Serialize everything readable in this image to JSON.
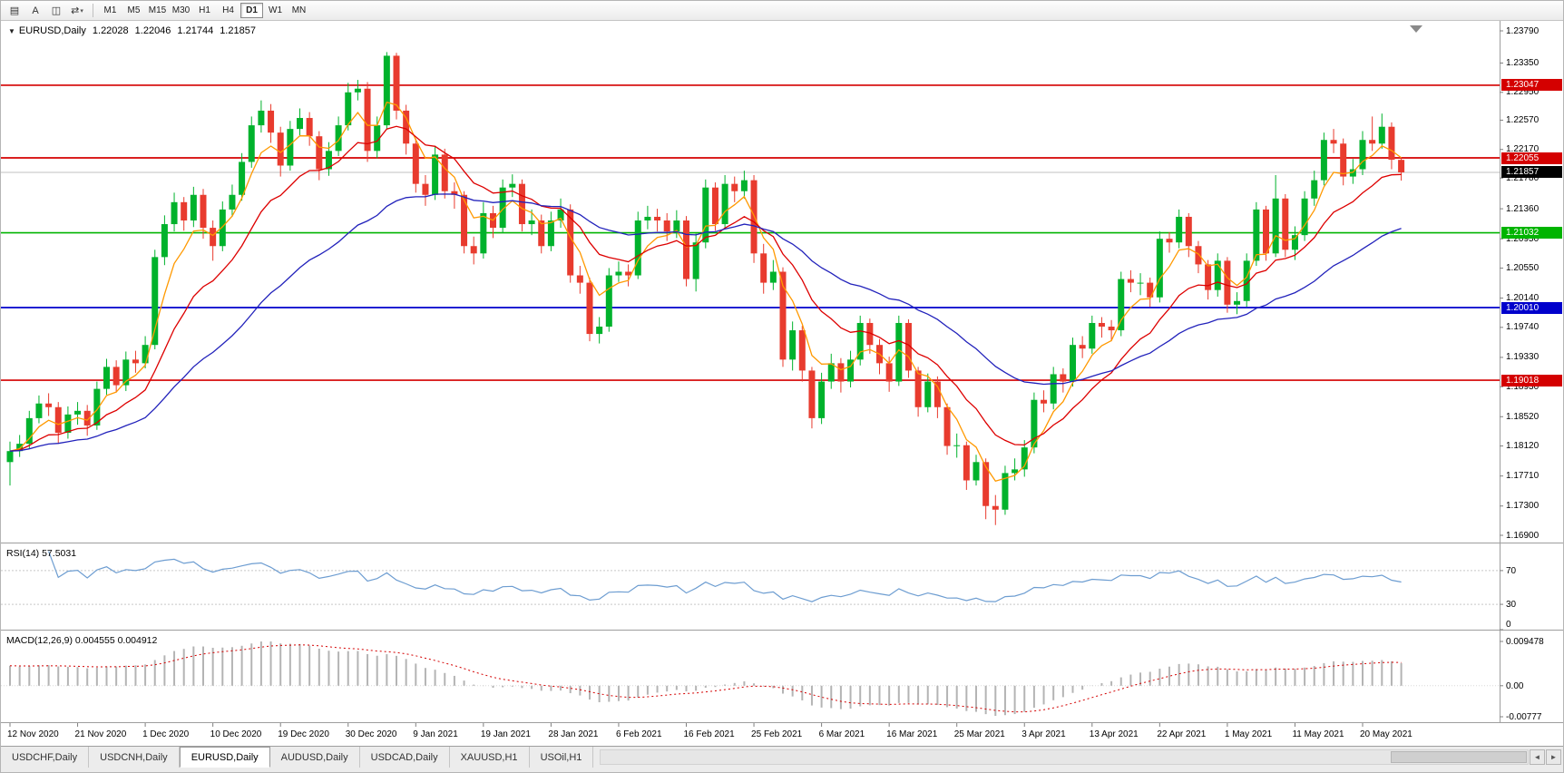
{
  "toolbar": {
    "icons": [
      {
        "name": "chart-list-icon",
        "glyph": "▤"
      },
      {
        "name": "cursor-a-tool",
        "glyph": "A"
      },
      {
        "name": "chart-frame-icon",
        "glyph": "◫"
      },
      {
        "name": "shift-scale-tool",
        "glyph": "⇄"
      }
    ],
    "dropdown_glyph": "▾",
    "timeframes": [
      "M1",
      "M5",
      "M15",
      "M30",
      "H1",
      "H4",
      "D1",
      "W1",
      "MN"
    ],
    "active_timeframe": "D1"
  },
  "chart": {
    "collapse_glyph": "▼",
    "symbol": "EURUSD,Daily",
    "open": "1.22028",
    "high": "1.22046",
    "low": "1.21744",
    "close": "1.21857",
    "hlines": [
      {
        "label": "1.23047",
        "value": 1.23047,
        "color": "#d40000"
      },
      {
        "label": "1.22055",
        "value": 1.22055,
        "color": "#d40000"
      },
      {
        "label": "1.21032",
        "value": 1.21032,
        "color": "#00b400"
      },
      {
        "label": "1.20010",
        "value": 1.2001,
        "color": "#0000cc"
      },
      {
        "label": "1.19018",
        "value": 1.19018,
        "color": "#d40000"
      }
    ],
    "current_price": {
      "label": "1.21857",
      "value": 1.21857,
      "color": "#000000"
    },
    "price_axis_labels": [
      "1.23790",
      "1.23350",
      "1.22950",
      "1.22570",
      "1.22170",
      "1.21780",
      "1.21360",
      "1.20950",
      "1.20550",
      "1.20140",
      "1.19740",
      "1.19330",
      "1.18930",
      "1.18520",
      "1.18120",
      "1.17710",
      "1.17300",
      "1.16900"
    ]
  },
  "indicators": {
    "rsi": {
      "label": "RSI(14) 57.5031",
      "period": 14,
      "levels": [
        "70",
        "30",
        "0"
      ],
      "color": "#6d9dd1"
    },
    "macd": {
      "label": "MACD(12,26,9) 0.004555 0.004912",
      "fast": 12,
      "slow": 26,
      "signal": 9,
      "axis": [
        "0.009478",
        "0.00",
        "-0.00777"
      ],
      "hist_color": "#b4b4b4",
      "signal_color": "#d40000"
    }
  },
  "date_axis": [
    "12 Nov 2020",
    "21 Nov 2020",
    "1 Dec 2020",
    "10 Dec 2020",
    "19 Dec 2020",
    "30 Dec 2020",
    "9 Jan 2021",
    "19 Jan 2021",
    "28 Jan 2021",
    "6 Feb 2021",
    "16 Feb 2021",
    "25 Feb 2021",
    "6 Mar 2021",
    "16 Mar 2021",
    "25 Mar 2021",
    "3 Apr 2021",
    "13 Apr 2021",
    "22 Apr 2021",
    "1 May 2021",
    "11 May 2021",
    "20 May 2021"
  ],
  "bottom": {
    "tabs": [
      "USDCHF,Daily",
      "USDCNH,Daily",
      "EURUSD,Daily",
      "AUDUSD,Daily",
      "USDCAD,Daily",
      "XAUUSD,H1",
      "USOil,H1"
    ],
    "active_index": 2,
    "scroll_left_glyph": "◄",
    "scroll_right_glyph": "►"
  },
  "chart_data": {
    "type": "candlestick",
    "symbol": "EURUSD",
    "timeframe": "Daily",
    "up_color": "#00b22c",
    "down_color": "#e83b2e",
    "ma": [
      {
        "name": "ma-fast",
        "period": 5,
        "type": "ema",
        "color": "#ff9900"
      },
      {
        "name": "ma-mid",
        "period": 13,
        "type": "ema",
        "color": "#dd0000"
      },
      {
        "name": "ma-slow",
        "period": 34,
        "type": "ema",
        "color": "#2222bb"
      }
    ],
    "candles": [
      [
        1.179,
        1.1818,
        1.1758,
        1.1805
      ],
      [
        1.1805,
        1.1827,
        1.1797,
        1.1815
      ],
      [
        1.1815,
        1.186,
        1.1808,
        1.185
      ],
      [
        1.185,
        1.1881,
        1.1843,
        1.187
      ],
      [
        1.187,
        1.1884,
        1.1853,
        1.1865
      ],
      [
        1.1865,
        1.1872,
        1.1815,
        1.183
      ],
      [
        1.183,
        1.1866,
        1.1822,
        1.1855
      ],
      [
        1.1855,
        1.1872,
        1.1841,
        1.186
      ],
      [
        1.186,
        1.1868,
        1.1826,
        1.184
      ],
      [
        1.184,
        1.19,
        1.1834,
        1.189
      ],
      [
        1.189,
        1.1931,
        1.1882,
        1.192
      ],
      [
        1.192,
        1.1929,
        1.1885,
        1.1895
      ],
      [
        1.1895,
        1.1941,
        1.1887,
        1.193
      ],
      [
        1.193,
        1.1942,
        1.1912,
        1.1925
      ],
      [
        1.1925,
        1.1962,
        1.1918,
        1.195
      ],
      [
        1.195,
        1.208,
        1.1944,
        1.207
      ],
      [
        1.207,
        1.2127,
        1.2059,
        1.2115
      ],
      [
        1.2115,
        1.2158,
        1.2105,
        1.2145
      ],
      [
        1.2145,
        1.2152,
        1.2106,
        1.212
      ],
      [
        1.212,
        1.2166,
        1.2111,
        1.2155
      ],
      [
        1.2155,
        1.2163,
        1.2095,
        1.211
      ],
      [
        1.211,
        1.212,
        1.2065,
        1.2085
      ],
      [
        1.2085,
        1.2146,
        1.2078,
        1.2135
      ],
      [
        1.2135,
        1.2169,
        1.2125,
        1.2155
      ],
      [
        1.2155,
        1.2212,
        1.2147,
        1.22
      ],
      [
        1.22,
        1.2262,
        1.2192,
        1.225
      ],
      [
        1.225,
        1.2284,
        1.224,
        1.227
      ],
      [
        1.227,
        1.2279,
        1.2226,
        1.224
      ],
      [
        1.224,
        1.2248,
        1.218,
        1.2195
      ],
      [
        1.2195,
        1.2256,
        1.2188,
        1.2245
      ],
      [
        1.2245,
        1.2273,
        1.2235,
        1.226
      ],
      [
        1.226,
        1.2268,
        1.2222,
        1.2235
      ],
      [
        1.2235,
        1.2242,
        1.2175,
        1.219
      ],
      [
        1.219,
        1.2227,
        1.2181,
        1.2215
      ],
      [
        1.2215,
        1.2262,
        1.2208,
        1.225
      ],
      [
        1.225,
        1.2308,
        1.2243,
        1.2295
      ],
      [
        1.2295,
        1.2312,
        1.2284,
        1.23
      ],
      [
        1.23,
        1.2309,
        1.22,
        1.2215
      ],
      [
        1.2215,
        1.2262,
        1.2205,
        1.225
      ],
      [
        1.225,
        1.235,
        1.2245,
        1.2345
      ],
      [
        1.2345,
        1.2349,
        1.2258,
        1.227
      ],
      [
        1.227,
        1.2278,
        1.221,
        1.2225
      ],
      [
        1.2225,
        1.2232,
        1.2158,
        1.217
      ],
      [
        1.217,
        1.2182,
        1.214,
        1.2155
      ],
      [
        1.2155,
        1.2222,
        1.2148,
        1.221
      ],
      [
        1.221,
        1.2218,
        1.215,
        1.216
      ],
      [
        1.216,
        1.2172,
        1.2136,
        1.2155
      ],
      [
        1.2155,
        1.216,
        1.2075,
        1.2085
      ],
      [
        1.2085,
        1.2098,
        1.206,
        1.2075
      ],
      [
        1.2075,
        1.2145,
        1.2068,
        1.213
      ],
      [
        1.213,
        1.214,
        1.2096,
        1.211
      ],
      [
        1.211,
        1.2176,
        1.2103,
        1.2165
      ],
      [
        1.2165,
        1.2183,
        1.2152,
        1.217
      ],
      [
        1.217,
        1.2176,
        1.2105,
        1.2115
      ],
      [
        1.2115,
        1.2135,
        1.21,
        1.212
      ],
      [
        1.212,
        1.2128,
        1.2075,
        1.2085
      ],
      [
        1.2085,
        1.2132,
        1.2078,
        1.212
      ],
      [
        1.212,
        1.215,
        1.211,
        1.2135
      ],
      [
        1.2135,
        1.2142,
        1.2035,
        1.2045
      ],
      [
        1.2045,
        1.2058,
        1.202,
        1.2035
      ],
      [
        1.2035,
        1.2042,
        1.1955,
        1.1965
      ],
      [
        1.1965,
        1.1988,
        1.1952,
        1.1975
      ],
      [
        1.1975,
        1.2055,
        1.1968,
        1.2045
      ],
      [
        1.2045,
        1.2064,
        1.2036,
        1.205
      ],
      [
        1.205,
        1.206,
        1.203,
        1.2045
      ],
      [
        1.2045,
        1.2132,
        1.204,
        1.212
      ],
      [
        1.212,
        1.214,
        1.2108,
        1.2125
      ],
      [
        1.2125,
        1.2136,
        1.2105,
        1.212
      ],
      [
        1.212,
        1.213,
        1.2092,
        1.2105
      ],
      [
        1.2105,
        1.2134,
        1.2096,
        1.212
      ],
      [
        1.212,
        1.2126,
        1.203,
        1.204
      ],
      [
        1.204,
        1.2102,
        1.2023,
        1.209
      ],
      [
        1.209,
        1.2176,
        1.2082,
        1.2165
      ],
      [
        1.2165,
        1.2172,
        1.2106,
        1.2115
      ],
      [
        1.2115,
        1.2182,
        1.2108,
        1.217
      ],
      [
        1.217,
        1.218,
        1.2145,
        1.216
      ],
      [
        1.216,
        1.2188,
        1.215,
        1.2175
      ],
      [
        1.2175,
        1.2182,
        1.2062,
        1.2075
      ],
      [
        1.2075,
        1.2088,
        1.202,
        1.2035
      ],
      [
        1.2035,
        1.2066,
        1.2025,
        1.205
      ],
      [
        1.205,
        1.2056,
        1.192,
        1.193
      ],
      [
        1.193,
        1.1982,
        1.1915,
        1.197
      ],
      [
        1.197,
        1.1976,
        1.19,
        1.1915
      ],
      [
        1.1915,
        1.192,
        1.1836,
        1.185
      ],
      [
        1.185,
        1.1912,
        1.1842,
        1.19
      ],
      [
        1.19,
        1.1938,
        1.189,
        1.1925
      ],
      [
        1.1925,
        1.1932,
        1.1885,
        1.19
      ],
      [
        1.19,
        1.1942,
        1.1892,
        1.193
      ],
      [
        1.193,
        1.199,
        1.1922,
        1.198
      ],
      [
        1.198,
        1.1986,
        1.1938,
        1.195
      ],
      [
        1.195,
        1.1958,
        1.191,
        1.1925
      ],
      [
        1.1925,
        1.1934,
        1.1886,
        1.19
      ],
      [
        1.19,
        1.199,
        1.1894,
        1.198
      ],
      [
        1.198,
        1.1985,
        1.1905,
        1.1915
      ],
      [
        1.1915,
        1.192,
        1.1852,
        1.1865
      ],
      [
        1.1865,
        1.1911,
        1.1858,
        1.19
      ],
      [
        1.19,
        1.1907,
        1.185,
        1.1865
      ],
      [
        1.1865,
        1.187,
        1.18,
        1.1812
      ],
      [
        1.1812,
        1.1829,
        1.1796,
        1.1813
      ],
      [
        1.1813,
        1.1818,
        1.1752,
        1.1765
      ],
      [
        1.1765,
        1.18,
        1.1758,
        1.179
      ],
      [
        1.179,
        1.1795,
        1.1712,
        1.173
      ],
      [
        1.173,
        1.1745,
        1.1704,
        1.1725
      ],
      [
        1.1725,
        1.1785,
        1.1718,
        1.1775
      ],
      [
        1.1775,
        1.1795,
        1.1765,
        1.178
      ],
      [
        1.178,
        1.182,
        1.177,
        1.181
      ],
      [
        1.181,
        1.1885,
        1.1802,
        1.1875
      ],
      [
        1.1875,
        1.1888,
        1.1858,
        1.187
      ],
      [
        1.187,
        1.192,
        1.1862,
        1.191
      ],
      [
        1.191,
        1.1918,
        1.1885,
        1.19
      ],
      [
        1.19,
        1.196,
        1.1893,
        1.195
      ],
      [
        1.195,
        1.1962,
        1.1932,
        1.1945
      ],
      [
        1.1945,
        1.199,
        1.1938,
        1.198
      ],
      [
        1.198,
        1.1988,
        1.196,
        1.1975
      ],
      [
        1.1975,
        1.1984,
        1.1955,
        1.197
      ],
      [
        1.197,
        1.205,
        1.1962,
        1.204
      ],
      [
        1.204,
        1.2052,
        1.2022,
        1.2035
      ],
      [
        1.2035,
        1.2048,
        1.2018,
        1.2035
      ],
      [
        1.2035,
        1.2042,
        1.2002,
        1.2015
      ],
      [
        1.2015,
        1.2105,
        1.2008,
        1.2095
      ],
      [
        1.2095,
        1.2104,
        1.2076,
        1.209
      ],
      [
        1.209,
        1.2135,
        1.2082,
        1.2125
      ],
      [
        1.2125,
        1.213,
        1.207,
        1.2085
      ],
      [
        1.2085,
        1.2092,
        1.2048,
        1.206
      ],
      [
        1.206,
        1.2066,
        1.2012,
        1.2025
      ],
      [
        1.2025,
        1.2075,
        1.2016,
        1.2065
      ],
      [
        1.2065,
        1.207,
        1.1994,
        1.2005
      ],
      [
        1.2005,
        1.2022,
        1.1992,
        1.201
      ],
      [
        1.201,
        1.2075,
        1.2002,
        1.2065
      ],
      [
        1.2065,
        1.2145,
        1.2058,
        1.2135
      ],
      [
        1.2135,
        1.214,
        1.2065,
        1.2075
      ],
      [
        1.2075,
        1.2182,
        1.207,
        1.215
      ],
      [
        1.215,
        1.2156,
        1.207,
        1.208
      ],
      [
        1.208,
        1.2112,
        1.2066,
        1.21
      ],
      [
        1.21,
        1.216,
        1.2092,
        1.215
      ],
      [
        1.215,
        1.2188,
        1.214,
        1.2175
      ],
      [
        1.2175,
        1.224,
        1.2168,
        1.223
      ],
      [
        1.223,
        1.2245,
        1.2212,
        1.2225
      ],
      [
        1.2225,
        1.2232,
        1.2168,
        1.218
      ],
      [
        1.218,
        1.2204,
        1.217,
        1.219
      ],
      [
        1.219,
        1.2242,
        1.2182,
        1.223
      ],
      [
        1.223,
        1.2262,
        1.2215,
        1.2225
      ],
      [
        1.2225,
        1.2266,
        1.2218,
        1.2248
      ],
      [
        1.2248,
        1.2254,
        1.219,
        1.2203
      ],
      [
        1.22028,
        1.22046,
        1.21744,
        1.21857
      ]
    ]
  }
}
